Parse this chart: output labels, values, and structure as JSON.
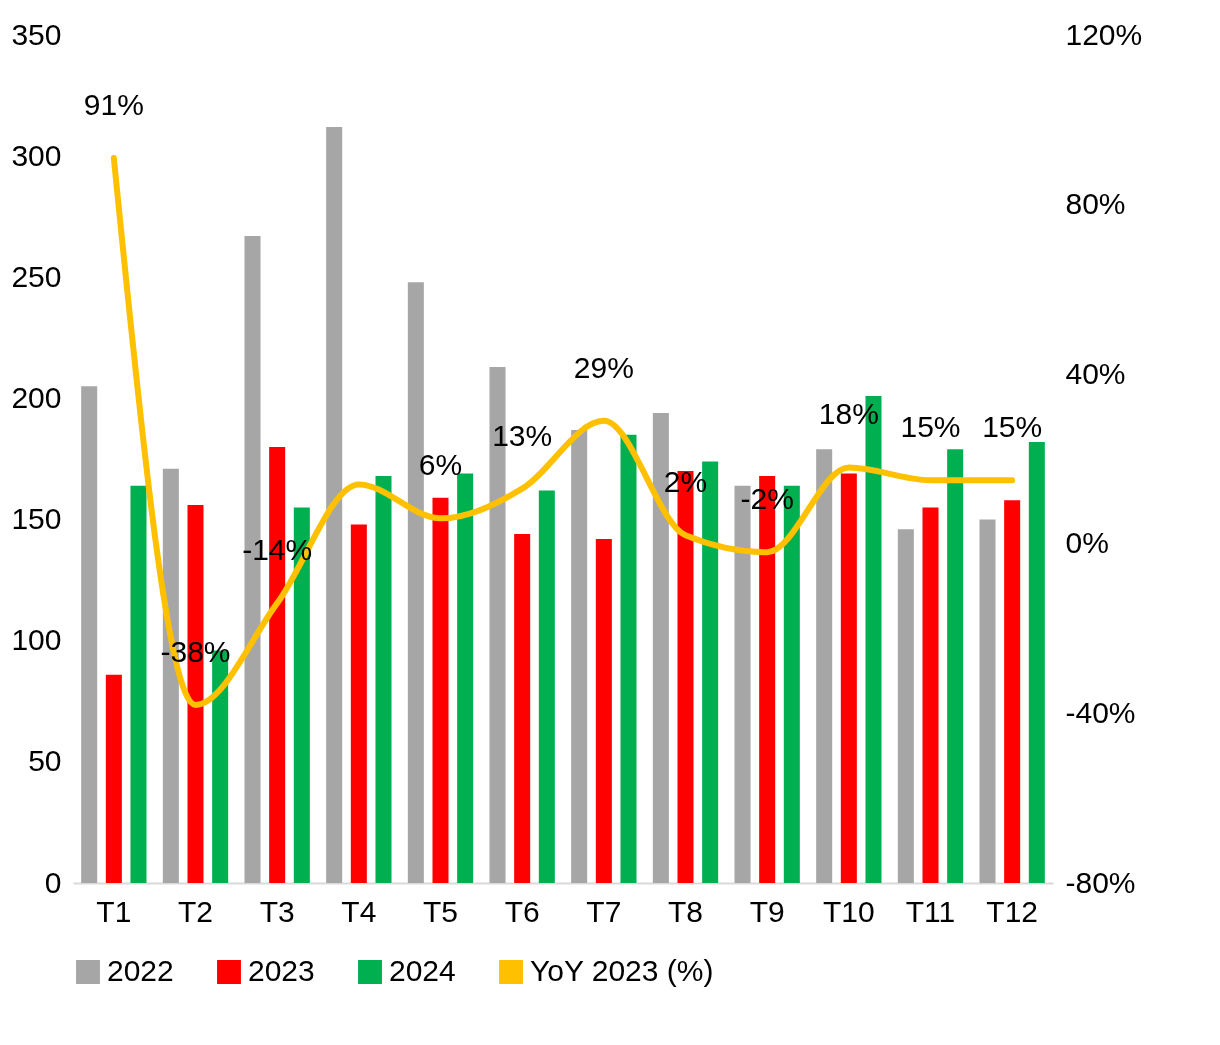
{
  "chart_data": {
    "type": "bar",
    "categories": [
      "T1",
      "T2",
      "T3",
      "T4",
      "T5",
      "T6",
      "T7",
      "T8",
      "T9",
      "T10",
      "T11",
      "T12"
    ],
    "series": [
      {
        "name": "2022",
        "color": "#a6a6a6",
        "values": [
          205,
          171,
          267,
          312,
          248,
          213,
          187,
          194,
          164,
          179,
          146,
          150
        ]
      },
      {
        "name": "2023",
        "color": "#ff0000",
        "values": [
          86,
          156,
          180,
          148,
          159,
          144,
          142,
          170,
          168,
          169,
          155,
          158
        ]
      },
      {
        "name": "2024",
        "color": "#00b050",
        "values": [
          164,
          96,
          155,
          168,
          169,
          162,
          185,
          174,
          164,
          201,
          179,
          182
        ]
      },
      {
        "name": "YoY 2023 (%)",
        "type": "line",
        "axis": "y2",
        "color": "#ffc000",
        "values": [
          91,
          -38,
          -14,
          14,
          6,
          13,
          29,
          2,
          -2,
          18,
          15,
          15
        ],
        "value_labels": [
          "91%",
          "-38%",
          "-14%",
          null,
          "6%",
          "13%",
          "29%",
          "2%",
          "-2%",
          "18%",
          "15%",
          "15%"
        ]
      }
    ],
    "ylim": [
      0,
      350
    ],
    "yticks": [
      0,
      50,
      100,
      150,
      200,
      250,
      300,
      350
    ],
    "y2lim": [
      -80,
      120
    ],
    "y2ticks": [
      {
        "value": -80,
        "label": "-80%"
      },
      {
        "value": -40,
        "label": "-40%"
      },
      {
        "value": 0,
        "label": "0%"
      },
      {
        "value": 40,
        "label": "40%"
      },
      {
        "value": 80,
        "label": "80%"
      },
      {
        "value": 120,
        "label": "120%"
      }
    ],
    "grid": false,
    "legend": "bottom"
  }
}
